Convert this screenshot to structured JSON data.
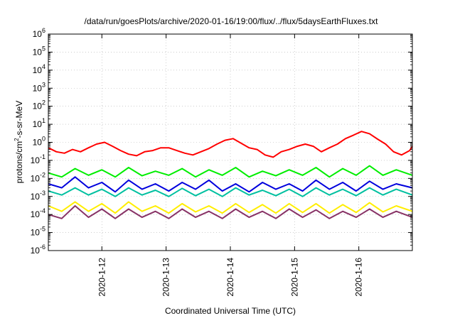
{
  "chart_data": {
    "type": "line",
    "title": "/data/run/goesPlots/archive/2020-01-16/19:00/flux/../flux/5daysEarthFluxes.txt",
    "xlabel": "Coordinated Universal Time (UTC)",
    "ylabel": "protons/cm²-s-sr-MeV",
    "ylabel_parts": {
      "pre": "protons/cm",
      "sup": "2",
      "post": "-s-sr-MeV"
    },
    "y_scale": "log",
    "ylim": [
      1e-06,
      1000000.0
    ],
    "xlim": [
      "2020-01-11T04:00",
      "2020-01-16T20:00"
    ],
    "grid": true,
    "x_ticks": [
      {
        "date": "2020-01-12T00:00",
        "label": "2020-1-12"
      },
      {
        "date": "2020-01-13T00:00",
        "label": "2020-1-13"
      },
      {
        "date": "2020-01-14T00:00",
        "label": "2020-1-14"
      },
      {
        "date": "2020-01-15T00:00",
        "label": "2020-1-15"
      },
      {
        "date": "2020-01-16T00:00",
        "label": "2020-1-16"
      }
    ],
    "y_ticks": [
      {
        "value": 1e-06,
        "base": "10",
        "exp": "-6"
      },
      {
        "value": 1e-05,
        "base": "10",
        "exp": "-5"
      },
      {
        "value": 0.0001,
        "base": "10",
        "exp": "-4"
      },
      {
        "value": 0.001,
        "base": "10",
        "exp": "-3"
      },
      {
        "value": 0.01,
        "base": "10",
        "exp": "-2"
      },
      {
        "value": 0.1,
        "base": "10",
        "exp": "-1"
      },
      {
        "value": 1,
        "base": "10",
        "exp": "0"
      },
      {
        "value": 10.0,
        "base": "10",
        "exp": "1"
      },
      {
        "value": 100.0,
        "base": "10",
        "exp": "2"
      },
      {
        "value": 1000.0,
        "base": "10",
        "exp": "3"
      },
      {
        "value": 10000.0,
        "base": "10",
        "exp": "4"
      },
      {
        "value": 100000.0,
        "base": "10",
        "exp": "5"
      },
      {
        "value": 1000000.0,
        "base": "10",
        "exp": "6"
      }
    ],
    "series": [
      {
        "color": "#ff0000",
        "x": [
          "2020-01-11T04:00",
          "2020-01-11T07:00",
          "2020-01-11T10:00",
          "2020-01-11T13:00",
          "2020-01-11T16:00",
          "2020-01-11T19:00",
          "2020-01-11T22:00",
          "2020-01-12T01:00",
          "2020-01-12T04:00",
          "2020-01-12T07:00",
          "2020-01-12T10:00",
          "2020-01-12T13:00",
          "2020-01-12T16:00",
          "2020-01-12T19:00",
          "2020-01-12T22:00",
          "2020-01-13T01:00",
          "2020-01-13T04:00",
          "2020-01-13T07:00",
          "2020-01-13T10:00",
          "2020-01-13T13:00",
          "2020-01-13T16:00",
          "2020-01-13T19:00",
          "2020-01-13T22:00",
          "2020-01-14T01:00",
          "2020-01-14T04:00",
          "2020-01-14T07:00",
          "2020-01-14T10:00",
          "2020-01-14T13:00",
          "2020-01-14T16:00",
          "2020-01-14T19:00",
          "2020-01-14T22:00",
          "2020-01-15T01:00",
          "2020-01-15T04:00",
          "2020-01-15T07:00",
          "2020-01-15T10:00",
          "2020-01-15T13:00",
          "2020-01-15T16:00",
          "2020-01-15T19:00",
          "2020-01-15T22:00",
          "2020-01-16T01:00",
          "2020-01-16T04:00",
          "2020-01-16T07:00",
          "2020-01-16T10:00",
          "2020-01-16T13:00",
          "2020-01-16T16:00",
          "2020-01-16T19:00",
          "2020-01-16T20:00"
        ],
        "values": [
          0.5,
          0.3,
          0.25,
          0.4,
          0.3,
          0.5,
          0.8,
          1.0,
          0.6,
          0.35,
          0.22,
          0.18,
          0.3,
          0.35,
          0.5,
          0.5,
          0.35,
          0.25,
          0.2,
          0.3,
          0.45,
          0.8,
          1.3,
          1.6,
          0.9,
          0.5,
          0.4,
          0.2,
          0.15,
          0.3,
          0.4,
          0.6,
          0.8,
          0.6,
          0.3,
          0.5,
          0.8,
          1.6,
          2.5,
          4.0,
          3.0,
          1.5,
          0.8,
          0.3,
          0.2,
          0.35,
          0.6
        ]
      },
      {
        "color": "#00ee00",
        "x": [
          "2020-01-11T04:00",
          "2020-01-11T09:00",
          "2020-01-11T14:00",
          "2020-01-11T19:00",
          "2020-01-12T00:00",
          "2020-01-12T05:00",
          "2020-01-12T10:00",
          "2020-01-12T15:00",
          "2020-01-12T20:00",
          "2020-01-13T01:00",
          "2020-01-13T06:00",
          "2020-01-13T11:00",
          "2020-01-13T16:00",
          "2020-01-13T21:00",
          "2020-01-14T02:00",
          "2020-01-14T07:00",
          "2020-01-14T12:00",
          "2020-01-14T17:00",
          "2020-01-14T22:00",
          "2020-01-15T03:00",
          "2020-01-15T08:00",
          "2020-01-15T13:00",
          "2020-01-15T18:00",
          "2020-01-15T23:00",
          "2020-01-16T04:00",
          "2020-01-16T09:00",
          "2020-01-16T14:00",
          "2020-01-16T20:00"
        ],
        "values": [
          0.02,
          0.012,
          0.035,
          0.015,
          0.03,
          0.012,
          0.04,
          0.014,
          0.025,
          0.015,
          0.035,
          0.012,
          0.03,
          0.015,
          0.04,
          0.012,
          0.025,
          0.014,
          0.03,
          0.015,
          0.04,
          0.012,
          0.035,
          0.015,
          0.05,
          0.015,
          0.03,
          0.015
        ]
      },
      {
        "color": "#0000dd",
        "x": [
          "2020-01-11T04:00",
          "2020-01-11T09:00",
          "2020-01-11T14:00",
          "2020-01-11T19:00",
          "2020-01-12T00:00",
          "2020-01-12T05:00",
          "2020-01-12T10:00",
          "2020-01-12T15:00",
          "2020-01-12T20:00",
          "2020-01-13T01:00",
          "2020-01-13T06:00",
          "2020-01-13T11:00",
          "2020-01-13T16:00",
          "2020-01-13T21:00",
          "2020-01-14T02:00",
          "2020-01-14T07:00",
          "2020-01-14T12:00",
          "2020-01-14T17:00",
          "2020-01-14T22:00",
          "2020-01-15T03:00",
          "2020-01-15T08:00",
          "2020-01-15T13:00",
          "2020-01-15T18:00",
          "2020-01-15T23:00",
          "2020-01-16T04:00",
          "2020-01-16T09:00",
          "2020-01-16T14:00",
          "2020-01-16T20:00"
        ],
        "values": [
          0.005,
          0.003,
          0.012,
          0.003,
          0.006,
          0.0018,
          0.008,
          0.0025,
          0.005,
          0.002,
          0.006,
          0.0025,
          0.008,
          0.002,
          0.005,
          0.0018,
          0.006,
          0.0025,
          0.005,
          0.002,
          0.008,
          0.0025,
          0.006,
          0.002,
          0.007,
          0.0025,
          0.005,
          0.003
        ]
      },
      {
        "color": "#00c0a0",
        "x": [
          "2020-01-11T04:00",
          "2020-01-11T09:00",
          "2020-01-11T14:00",
          "2020-01-11T19:00",
          "2020-01-12T00:00",
          "2020-01-12T05:00",
          "2020-01-12T10:00",
          "2020-01-12T15:00",
          "2020-01-12T20:00",
          "2020-01-13T01:00",
          "2020-01-13T06:00",
          "2020-01-13T11:00",
          "2020-01-13T16:00",
          "2020-01-13T21:00",
          "2020-01-14T02:00",
          "2020-01-14T07:00",
          "2020-01-14T12:00",
          "2020-01-14T17:00",
          "2020-01-14T22:00",
          "2020-01-15T03:00",
          "2020-01-15T08:00",
          "2020-01-15T13:00",
          "2020-01-15T18:00",
          "2020-01-15T23:00",
          "2020-01-16T04:00",
          "2020-01-16T09:00",
          "2020-01-16T14:00",
          "2020-01-16T20:00"
        ],
        "values": [
          0.002,
          0.0012,
          0.003,
          0.0012,
          0.0025,
          0.001,
          0.003,
          0.0012,
          0.0022,
          0.001,
          0.0028,
          0.0011,
          0.0025,
          0.001,
          0.003,
          0.0012,
          0.0022,
          0.0011,
          0.0025,
          0.001,
          0.003,
          0.0012,
          0.0025,
          0.0011,
          0.003,
          0.0012,
          0.0025,
          0.0012
        ]
      },
      {
        "color": "#ffee00",
        "x": [
          "2020-01-11T04:00",
          "2020-01-11T09:00",
          "2020-01-11T14:00",
          "2020-01-11T19:00",
          "2020-01-12T00:00",
          "2020-01-12T05:00",
          "2020-01-12T10:00",
          "2020-01-12T15:00",
          "2020-01-12T20:00",
          "2020-01-13T01:00",
          "2020-01-13T06:00",
          "2020-01-13T11:00",
          "2020-01-13T16:00",
          "2020-01-13T21:00",
          "2020-01-14T02:00",
          "2020-01-14T07:00",
          "2020-01-14T12:00",
          "2020-01-14T17:00",
          "2020-01-14T22:00",
          "2020-01-15T03:00",
          "2020-01-15T08:00",
          "2020-01-15T13:00",
          "2020-01-15T18:00",
          "2020-01-15T23:00",
          "2020-01-16T04:00",
          "2020-01-16T09:00",
          "2020-01-16T14:00",
          "2020-01-16T20:00"
        ],
        "values": [
          0.0003,
          0.00015,
          0.0005,
          0.00015,
          0.0004,
          0.00012,
          0.0005,
          0.00015,
          0.0003,
          0.00012,
          0.0004,
          0.00014,
          0.0003,
          0.00012,
          0.0004,
          0.00013,
          0.00035,
          0.00012,
          0.0004,
          0.00013,
          0.0004,
          0.00012,
          0.00035,
          0.00013,
          0.00045,
          0.00014,
          0.0003,
          0.00015
        ]
      },
      {
        "color": "#883366",
        "x": [
          "2020-01-11T04:00",
          "2020-01-11T09:00",
          "2020-01-11T14:00",
          "2020-01-11T19:00",
          "2020-01-12T00:00",
          "2020-01-12T05:00",
          "2020-01-12T10:00",
          "2020-01-12T15:00",
          "2020-01-12T20:00",
          "2020-01-13T01:00",
          "2020-01-13T06:00",
          "2020-01-13T11:00",
          "2020-01-13T16:00",
          "2020-01-13T21:00",
          "2020-01-14T02:00",
          "2020-01-14T07:00",
          "2020-01-14T12:00",
          "2020-01-14T17:00",
          "2020-01-14T22:00",
          "2020-01-15T03:00",
          "2020-01-15T08:00",
          "2020-01-15T13:00",
          "2020-01-15T18:00",
          "2020-01-15T23:00",
          "2020-01-16T04:00",
          "2020-01-16T09:00",
          "2020-01-16T14:00",
          "2020-01-16T20:00"
        ],
        "values": [
          0.0001,
          6e-05,
          0.0003,
          7e-05,
          0.0002,
          6e-05,
          0.0002,
          7e-05,
          0.00015,
          6e-05,
          0.0002,
          7e-05,
          0.00015,
          6e-05,
          0.0002,
          7e-05,
          0.00015,
          6e-05,
          0.0002,
          7e-05,
          0.00018,
          6e-05,
          0.00015,
          7e-05,
          0.0002,
          7e-05,
          0.00015,
          7e-05
        ]
      }
    ]
  }
}
